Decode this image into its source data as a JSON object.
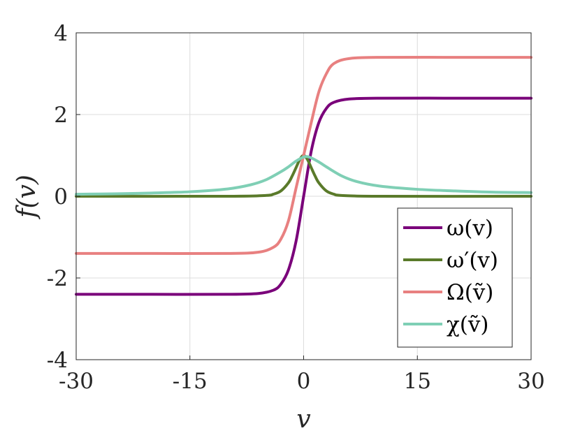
{
  "chart_data": {
    "type": "line",
    "xlabel": "v",
    "ylabel": "f(v)",
    "xlim": [
      -30,
      30
    ],
    "ylim": [
      -4,
      4
    ],
    "x_ticks": [
      -30,
      -15,
      0,
      15,
      30
    ],
    "x_tick_labels": [
      "-30",
      "-15",
      "0",
      "15",
      "30"
    ],
    "y_ticks": [
      -4,
      -2,
      0,
      2,
      4
    ],
    "y_tick_labels": [
      "-4",
      "-2",
      "0",
      "2",
      "4"
    ],
    "grid": true,
    "legend_position": "bottom-right",
    "series": [
      {
        "name": "ω(v)",
        "color": "#7a007a",
        "x": [
          -30,
          -20,
          -10,
          -6,
          -4,
          -3,
          -2,
          -1,
          0,
          1,
          2,
          3,
          4,
          6,
          10,
          20,
          30
        ],
        "y": [
          -2.4,
          -2.4,
          -2.4,
          -2.38,
          -2.3,
          -2.15,
          -1.8,
          -1.1,
          0.0,
          1.1,
          1.8,
          2.15,
          2.3,
          2.38,
          2.4,
          2.4,
          2.4
        ]
      },
      {
        "name": "ω′(v)",
        "color": "#5a7a2a",
        "x": [
          -30,
          -10,
          -5,
          -4,
          -3,
          -2,
          -1.5,
          -1,
          -0.5,
          0,
          0.5,
          1,
          1.5,
          2,
          3,
          4,
          5,
          10,
          30
        ],
        "y": [
          0.0,
          0.0,
          0.02,
          0.05,
          0.13,
          0.33,
          0.5,
          0.7,
          0.9,
          1.0,
          0.9,
          0.7,
          0.5,
          0.33,
          0.13,
          0.05,
          0.02,
          0.0,
          0.0
        ]
      },
      {
        "name": "Ω(ṽ)",
        "color": "#e88080",
        "x": [
          -30,
          -20,
          -10,
          -6,
          -4,
          -3,
          -2,
          -1,
          0,
          1,
          2,
          3,
          4,
          6,
          10,
          20,
          30
        ],
        "y": [
          -1.4,
          -1.4,
          -1.4,
          -1.37,
          -1.25,
          -1.05,
          -0.6,
          0.2,
          1.0,
          1.8,
          2.55,
          3.0,
          3.25,
          3.37,
          3.4,
          3.4,
          3.4
        ]
      },
      {
        "name": "χ(ṽ)",
        "color": "#7fcfb5",
        "x": [
          -30,
          -25,
          -20,
          -15,
          -10,
          -7,
          -5,
          -3,
          -2,
          -1,
          0,
          0.5,
          1,
          2,
          3,
          5,
          7,
          10,
          15,
          20,
          25,
          30
        ],
        "y": [
          0.05,
          0.06,
          0.08,
          0.11,
          0.18,
          0.28,
          0.4,
          0.6,
          0.72,
          0.86,
          0.96,
          0.97,
          0.94,
          0.84,
          0.72,
          0.5,
          0.36,
          0.25,
          0.17,
          0.13,
          0.1,
          0.09
        ]
      }
    ]
  }
}
